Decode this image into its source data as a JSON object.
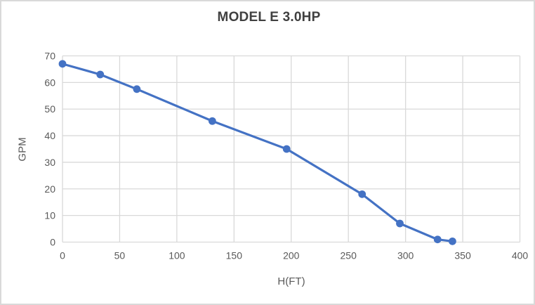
{
  "chart_data": {
    "type": "line",
    "title": "MODEL E 3.0HP",
    "xlabel": "H(FT)",
    "ylabel": "GPM",
    "x": [
      0,
      33,
      65,
      131,
      196,
      262,
      295,
      328,
      341
    ],
    "y": [
      67,
      63,
      57.5,
      45.5,
      35,
      18,
      7,
      1,
      0.3
    ],
    "xlim": [
      0,
      400
    ],
    "ylim": [
      0,
      70
    ],
    "x_ticks": [
      0,
      50,
      100,
      150,
      200,
      250,
      300,
      350,
      400
    ],
    "y_ticks": [
      0,
      10,
      20,
      30,
      40,
      50,
      60,
      70
    ],
    "grid": true,
    "legend": false,
    "marker": "circle",
    "series_name": "MODEL E 3.0HP"
  },
  "colors": {
    "accent": "#4472C4",
    "gridline": "#D9D9D9",
    "axis_text": "#595959",
    "title_text": "#404040",
    "frame_border": "#D9D9D9",
    "background": "#FFFFFF"
  }
}
